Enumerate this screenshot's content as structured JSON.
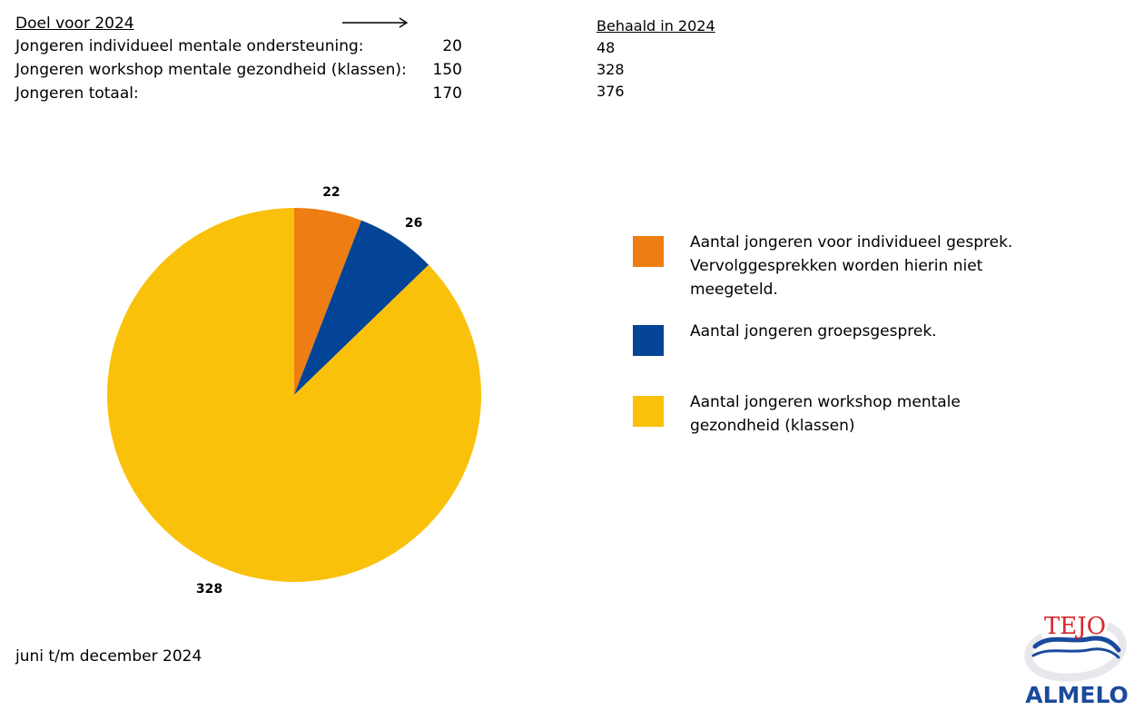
{
  "goal": {
    "title": "Doel voor 2024",
    "rows": [
      {
        "label": "Jongeren individueel mentale ondersteuning:",
        "value": "20"
      },
      {
        "label": "Jongeren  workshop mentale gezondheid (klassen):",
        "value": "150"
      },
      {
        "label": "Jongeren totaal:",
        "value": "170"
      }
    ]
  },
  "achieved": {
    "title": "Behaald in 2024",
    "values": [
      "48",
      "328",
      "376"
    ]
  },
  "chart_data": {
    "type": "pie",
    "slices": [
      {
        "value": 22,
        "label": "22",
        "color": "#EE7D14",
        "legend": "Aantal jongeren voor individueel gesprek. Vervolggesprekken worden hierin niet meegeteld."
      },
      {
        "value": 26,
        "label": "26",
        "color": "#034496",
        "legend": "Aantal jongeren groepsgesprek."
      },
      {
        "value": 328,
        "label": "328",
        "color": "#FAC10B",
        "legend": "Aantal jongeren workshop mentale gezondheid (klassen)"
      }
    ],
    "start_angle_deg": 0,
    "direction": "clockwise",
    "legend_position": "right"
  },
  "footer": {
    "period": "juni t/m december 2024"
  },
  "logo": {
    "top_text": "TEJO",
    "bottom_text": "ALMELO",
    "red": "#D9252B",
    "blue": "#1A4A9C"
  }
}
